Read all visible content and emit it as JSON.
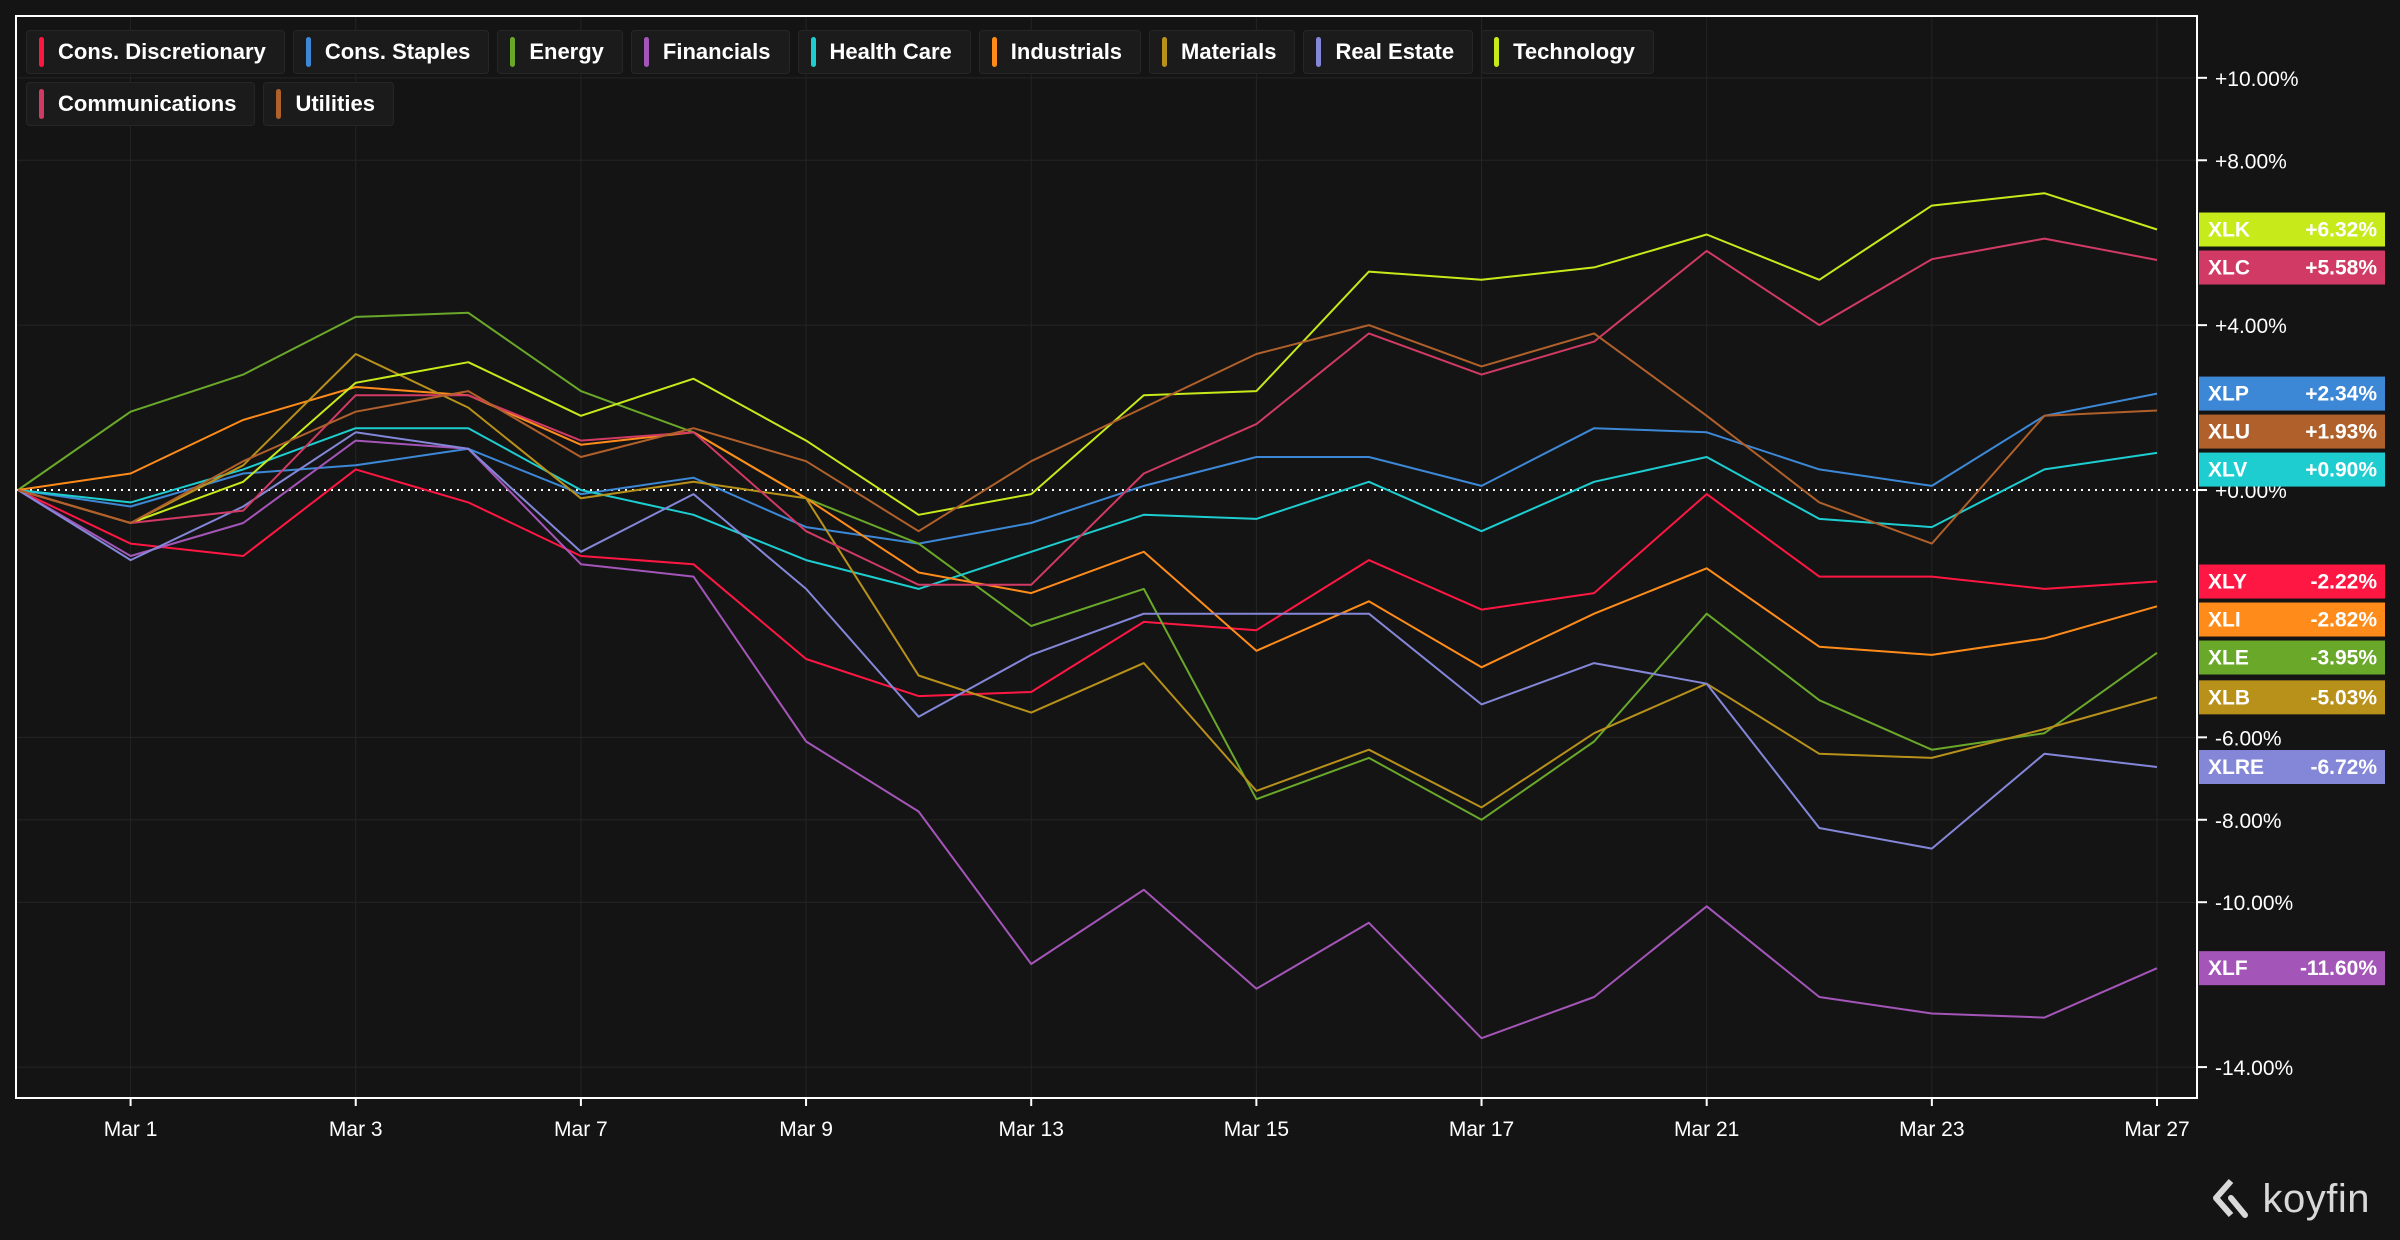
{
  "brand": {
    "name": "koyfin",
    "icon": "koyfin-logo-icon"
  },
  "colors": {
    "background": "#141414",
    "frame": "#ffffff",
    "grid": "#242424",
    "zero_line": "#ffffff"
  },
  "chart_data": {
    "type": "line",
    "title": "",
    "xlabel": "",
    "ylabel": "",
    "grid": true,
    "legend_position": "top-left",
    "y_axis_position": "right",
    "ylim": [
      -14.75,
      11.5
    ],
    "x_count": 20,
    "x_ticks": [
      {
        "index": 1,
        "label": "Mar 1"
      },
      {
        "index": 3,
        "label": "Mar 3"
      },
      {
        "index": 5,
        "label": "Mar 7"
      },
      {
        "index": 7,
        "label": "Mar 9"
      },
      {
        "index": 9,
        "label": "Mar 13"
      },
      {
        "index": 11,
        "label": "Mar 15"
      },
      {
        "index": 13,
        "label": "Mar 17"
      },
      {
        "index": 15,
        "label": "Mar 21"
      },
      {
        "index": 17,
        "label": "Mar 23"
      },
      {
        "index": 19,
        "label": "Mar 27"
      }
    ],
    "y_ticks": [
      {
        "value": 10,
        "label": "+10.00%"
      },
      {
        "value": 8,
        "label": "+8.00%"
      },
      {
        "value": 4,
        "label": "+4.00%"
      },
      {
        "value": 0,
        "label": "+0.00%"
      },
      {
        "value": -6,
        "label": "-6.00%"
      },
      {
        "value": -8,
        "label": "-8.00%"
      },
      {
        "value": -10,
        "label": "-10.00%"
      },
      {
        "value": -14,
        "label": "-14.00%"
      }
    ],
    "series": [
      {
        "name": "Cons. Discretionary",
        "ticker": "XLY",
        "color": "#ff1744",
        "end_label": "-2.22%",
        "values": [
          0,
          -1.3,
          -1.6,
          0.5,
          -0.3,
          -1.6,
          -1.8,
          -4.1,
          -5.0,
          -4.9,
          -3.2,
          -3.4,
          -1.7,
          -2.9,
          -2.5,
          -0.1,
          -2.1,
          -2.1,
          -2.4,
          -2.22
        ]
      },
      {
        "name": "Cons. Staples",
        "ticker": "XLP",
        "color": "#3d88d6",
        "end_label": "+2.34%",
        "values": [
          0,
          -0.4,
          0.4,
          0.6,
          1.0,
          -0.1,
          0.3,
          -0.9,
          -1.3,
          -0.8,
          0.1,
          0.8,
          0.8,
          0.1,
          1.5,
          1.4,
          0.5,
          0.1,
          1.8,
          2.34
        ]
      },
      {
        "name": "Energy",
        "ticker": "XLE",
        "color": "#6aa82a",
        "end_label": "-3.95%",
        "values": [
          0,
          1.9,
          2.8,
          4.2,
          4.3,
          2.4,
          1.4,
          -0.2,
          -1.3,
          -3.3,
          -2.4,
          -7.5,
          -6.5,
          -8.0,
          -6.1,
          -3.0,
          -5.1,
          -6.3,
          -5.9,
          -3.95
        ]
      },
      {
        "name": "Financials",
        "ticker": "XLF",
        "color": "#a455b8",
        "end_label": "-11.60%",
        "values": [
          0,
          -1.6,
          -0.8,
          1.2,
          1.0,
          -1.8,
          -2.1,
          -6.1,
          -7.8,
          -11.5,
          -9.7,
          -12.1,
          -10.5,
          -13.3,
          -12.3,
          -10.1,
          -12.3,
          -12.7,
          -12.8,
          -11.6
        ]
      },
      {
        "name": "Health Care",
        "ticker": "XLV",
        "color": "#1ecdd0",
        "end_label": "+0.90%",
        "values": [
          0,
          -0.3,
          0.5,
          1.5,
          1.5,
          0.0,
          -0.6,
          -1.7,
          -2.4,
          -1.5,
          -0.6,
          -0.7,
          0.2,
          -1.0,
          0.2,
          0.8,
          -0.7,
          -0.9,
          0.5,
          0.9
        ]
      },
      {
        "name": "Industrials",
        "ticker": "XLI",
        "color": "#ff8c1a",
        "end_label": "-2.82%",
        "values": [
          0,
          0.4,
          1.7,
          2.5,
          2.3,
          1.1,
          1.4,
          -0.2,
          -2.0,
          -2.5,
          -1.5,
          -3.9,
          -2.7,
          -4.3,
          -3.0,
          -1.9,
          -3.8,
          -4.0,
          -3.6,
          -2.82
        ]
      },
      {
        "name": "Materials",
        "ticker": "XLB",
        "color": "#b8911a",
        "end_label": "-5.03%",
        "values": [
          0,
          -0.8,
          0.6,
          3.3,
          2.0,
          -0.2,
          0.2,
          -0.2,
          -4.5,
          -5.4,
          -4.2,
          -7.3,
          -6.3,
          -7.7,
          -5.9,
          -4.7,
          -6.4,
          -6.5,
          -5.8,
          -5.03
        ]
      },
      {
        "name": "Real Estate",
        "ticker": "XLRE",
        "color": "#8486d8",
        "end_label": "-6.72%",
        "values": [
          0,
          -1.7,
          -0.4,
          1.4,
          1.0,
          -1.5,
          -0.1,
          -2.4,
          -5.5,
          -4.0,
          -3.0,
          -3.0,
          -3.0,
          -5.2,
          -4.2,
          -4.7,
          -8.2,
          -8.7,
          -6.4,
          -6.72
        ]
      },
      {
        "name": "Technology",
        "ticker": "XLK",
        "color": "#c7ea1a",
        "end_label": "+6.32%",
        "values": [
          0,
          -0.8,
          0.2,
          2.6,
          3.1,
          1.8,
          2.7,
          1.2,
          -0.6,
          -0.1,
          2.3,
          2.4,
          5.3,
          5.1,
          5.4,
          6.2,
          5.1,
          6.9,
          7.2,
          6.32
        ]
      },
      {
        "name": "Communications",
        "ticker": "XLC",
        "color": "#d13a64",
        "end_label": "+5.58%",
        "values": [
          0,
          -0.8,
          -0.5,
          2.3,
          2.3,
          1.2,
          1.4,
          -1.0,
          -2.3,
          -2.3,
          0.4,
          1.6,
          3.8,
          2.8,
          3.6,
          5.8,
          4.0,
          5.6,
          6.1,
          5.58
        ]
      },
      {
        "name": "Utilities",
        "ticker": "XLU",
        "color": "#b0602a",
        "end_label": "+1.93%",
        "values": [
          0,
          -0.8,
          0.7,
          1.9,
          2.4,
          0.8,
          1.5,
          0.7,
          -1.0,
          0.7,
          2.0,
          3.3,
          4.0,
          3.0,
          3.8,
          1.8,
          -0.3,
          -1.3,
          1.8,
          1.93
        ]
      }
    ]
  }
}
